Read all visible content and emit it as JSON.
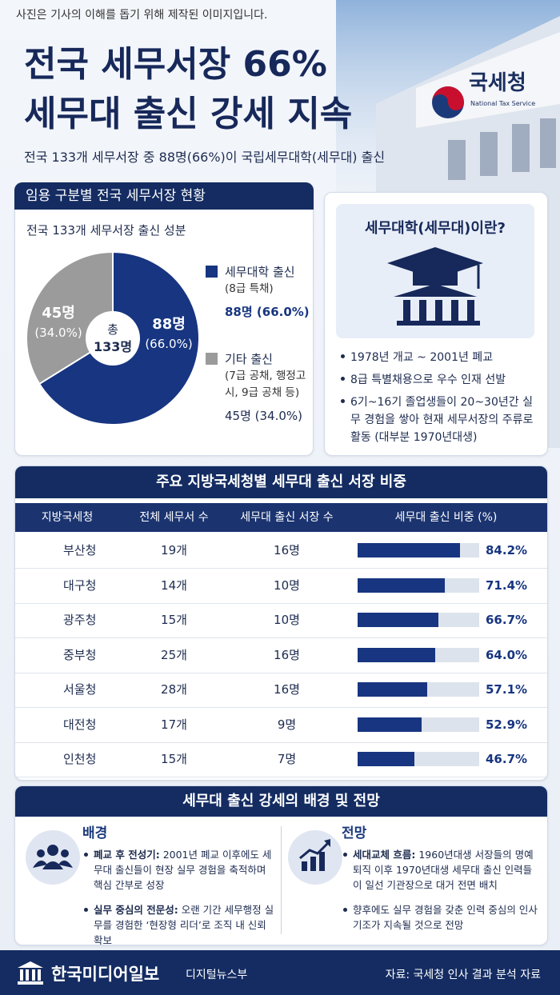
{
  "header": {
    "disclaimer": "사진은 기사의 이해를 돕기 위해 제작된 이미지입니다.",
    "title_lines": [
      "전국 세무서장 66%",
      "세무대 출신 강세 지속"
    ],
    "subtitle": "전국 133개 세무서장 중 88명(66%)이 국립세무대학(세무대) 출신",
    "building_sign": "국세청",
    "building_sign_en": "National Tax Service"
  },
  "chart_data": [
    {
      "type": "pie",
      "section_title": "임용 구분별 전국 세무서장 현황",
      "title": "전국 133개 세무서장 출신 성분",
      "center_label": "총",
      "center_total": "133명",
      "categories": [
        "세무대학 출신",
        "기타 출신"
      ],
      "category_notes": [
        "(8급 특채)",
        "(7급 공채, 행정고시, 9급 공채 등)"
      ],
      "values": [
        88,
        45
      ],
      "value_labels": [
        "88명",
        "45명"
      ],
      "percent_labels": [
        "(66.0%)",
        "(34.0%)"
      ],
      "legend_values": [
        "88명 (66.0%)",
        "45명 (34.0%)"
      ],
      "colors": [
        "#173580",
        "#9b9b9b"
      ]
    },
    {
      "type": "bar",
      "title": "주요 지방국세청별 세무대 출신 서장 비중",
      "columns": [
        "지방국세청",
        "전체 세무서 수",
        "세무대 출신 서장 수",
        "세무대 출신 비중 (%)"
      ],
      "categories": [
        "부산청",
        "대구청",
        "광주청",
        "중부청",
        "서울청",
        "대전청",
        "인천청"
      ],
      "total_offices": [
        "19개",
        "14개",
        "15개",
        "25개",
        "28개",
        "17개",
        "15개"
      ],
      "graduate_heads": [
        "16명",
        "10명",
        "10명",
        "16명",
        "16명",
        "9명",
        "7명"
      ],
      "values": [
        84.2,
        71.4,
        66.7,
        64.0,
        57.1,
        52.9,
        46.7
      ],
      "value_labels": [
        "84.2%",
        "71.4%",
        "66.7%",
        "64.0%",
        "57.1%",
        "52.9%",
        "46.7%"
      ],
      "xlim": [
        0,
        100
      ],
      "color": "#173580",
      "track_color": "#dde3ec"
    }
  ],
  "info_box": {
    "title": "세무대학(세무대)이란?",
    "items": [
      "1978년 개교 ~ 2001년 폐교",
      "8급 특별채용으로 우수 인재 선발",
      "6기~16기 졸업생들이 20~30년간 실무 경험을 쌓아 현재 세무서장의 주류로 활동 (대부분 1970년대생)"
    ]
  },
  "outlook": {
    "title": "세무대 출신 강세의 배경 및 전망",
    "columns": [
      {
        "heading": "배경",
        "items": [
          {
            "lead": "폐교 후 전성기:",
            "text": "2001년 폐교 이후에도 세무대 출신들이 현장 실무 경험을 축적하며 핵심 간부로 성장"
          },
          {
            "lead": "실무 중심의 전문성:",
            "text": "오랜 기간 세무행정 실무를 경험한 ‘현장형 리더’로 조직 내 신뢰 확보"
          }
        ]
      },
      {
        "heading": "전망",
        "items": [
          {
            "lead": "세대교체 흐름:",
            "text": "1960년대생 서장들의 명예퇴직 이후 1970년대생 세무대 출신 인력들이 일선 기관장으로 대거 전면 배치"
          },
          {
            "text": "향후에도 실무 경험을 갖춘 인력 중심의 인사 기조가 지속될 것으로 전망"
          }
        ]
      }
    ]
  },
  "footer": {
    "brand": "한국미디어일보",
    "department": "디지털뉴스부",
    "source": "자료: 국세청 인사 결과 분석 자료"
  }
}
